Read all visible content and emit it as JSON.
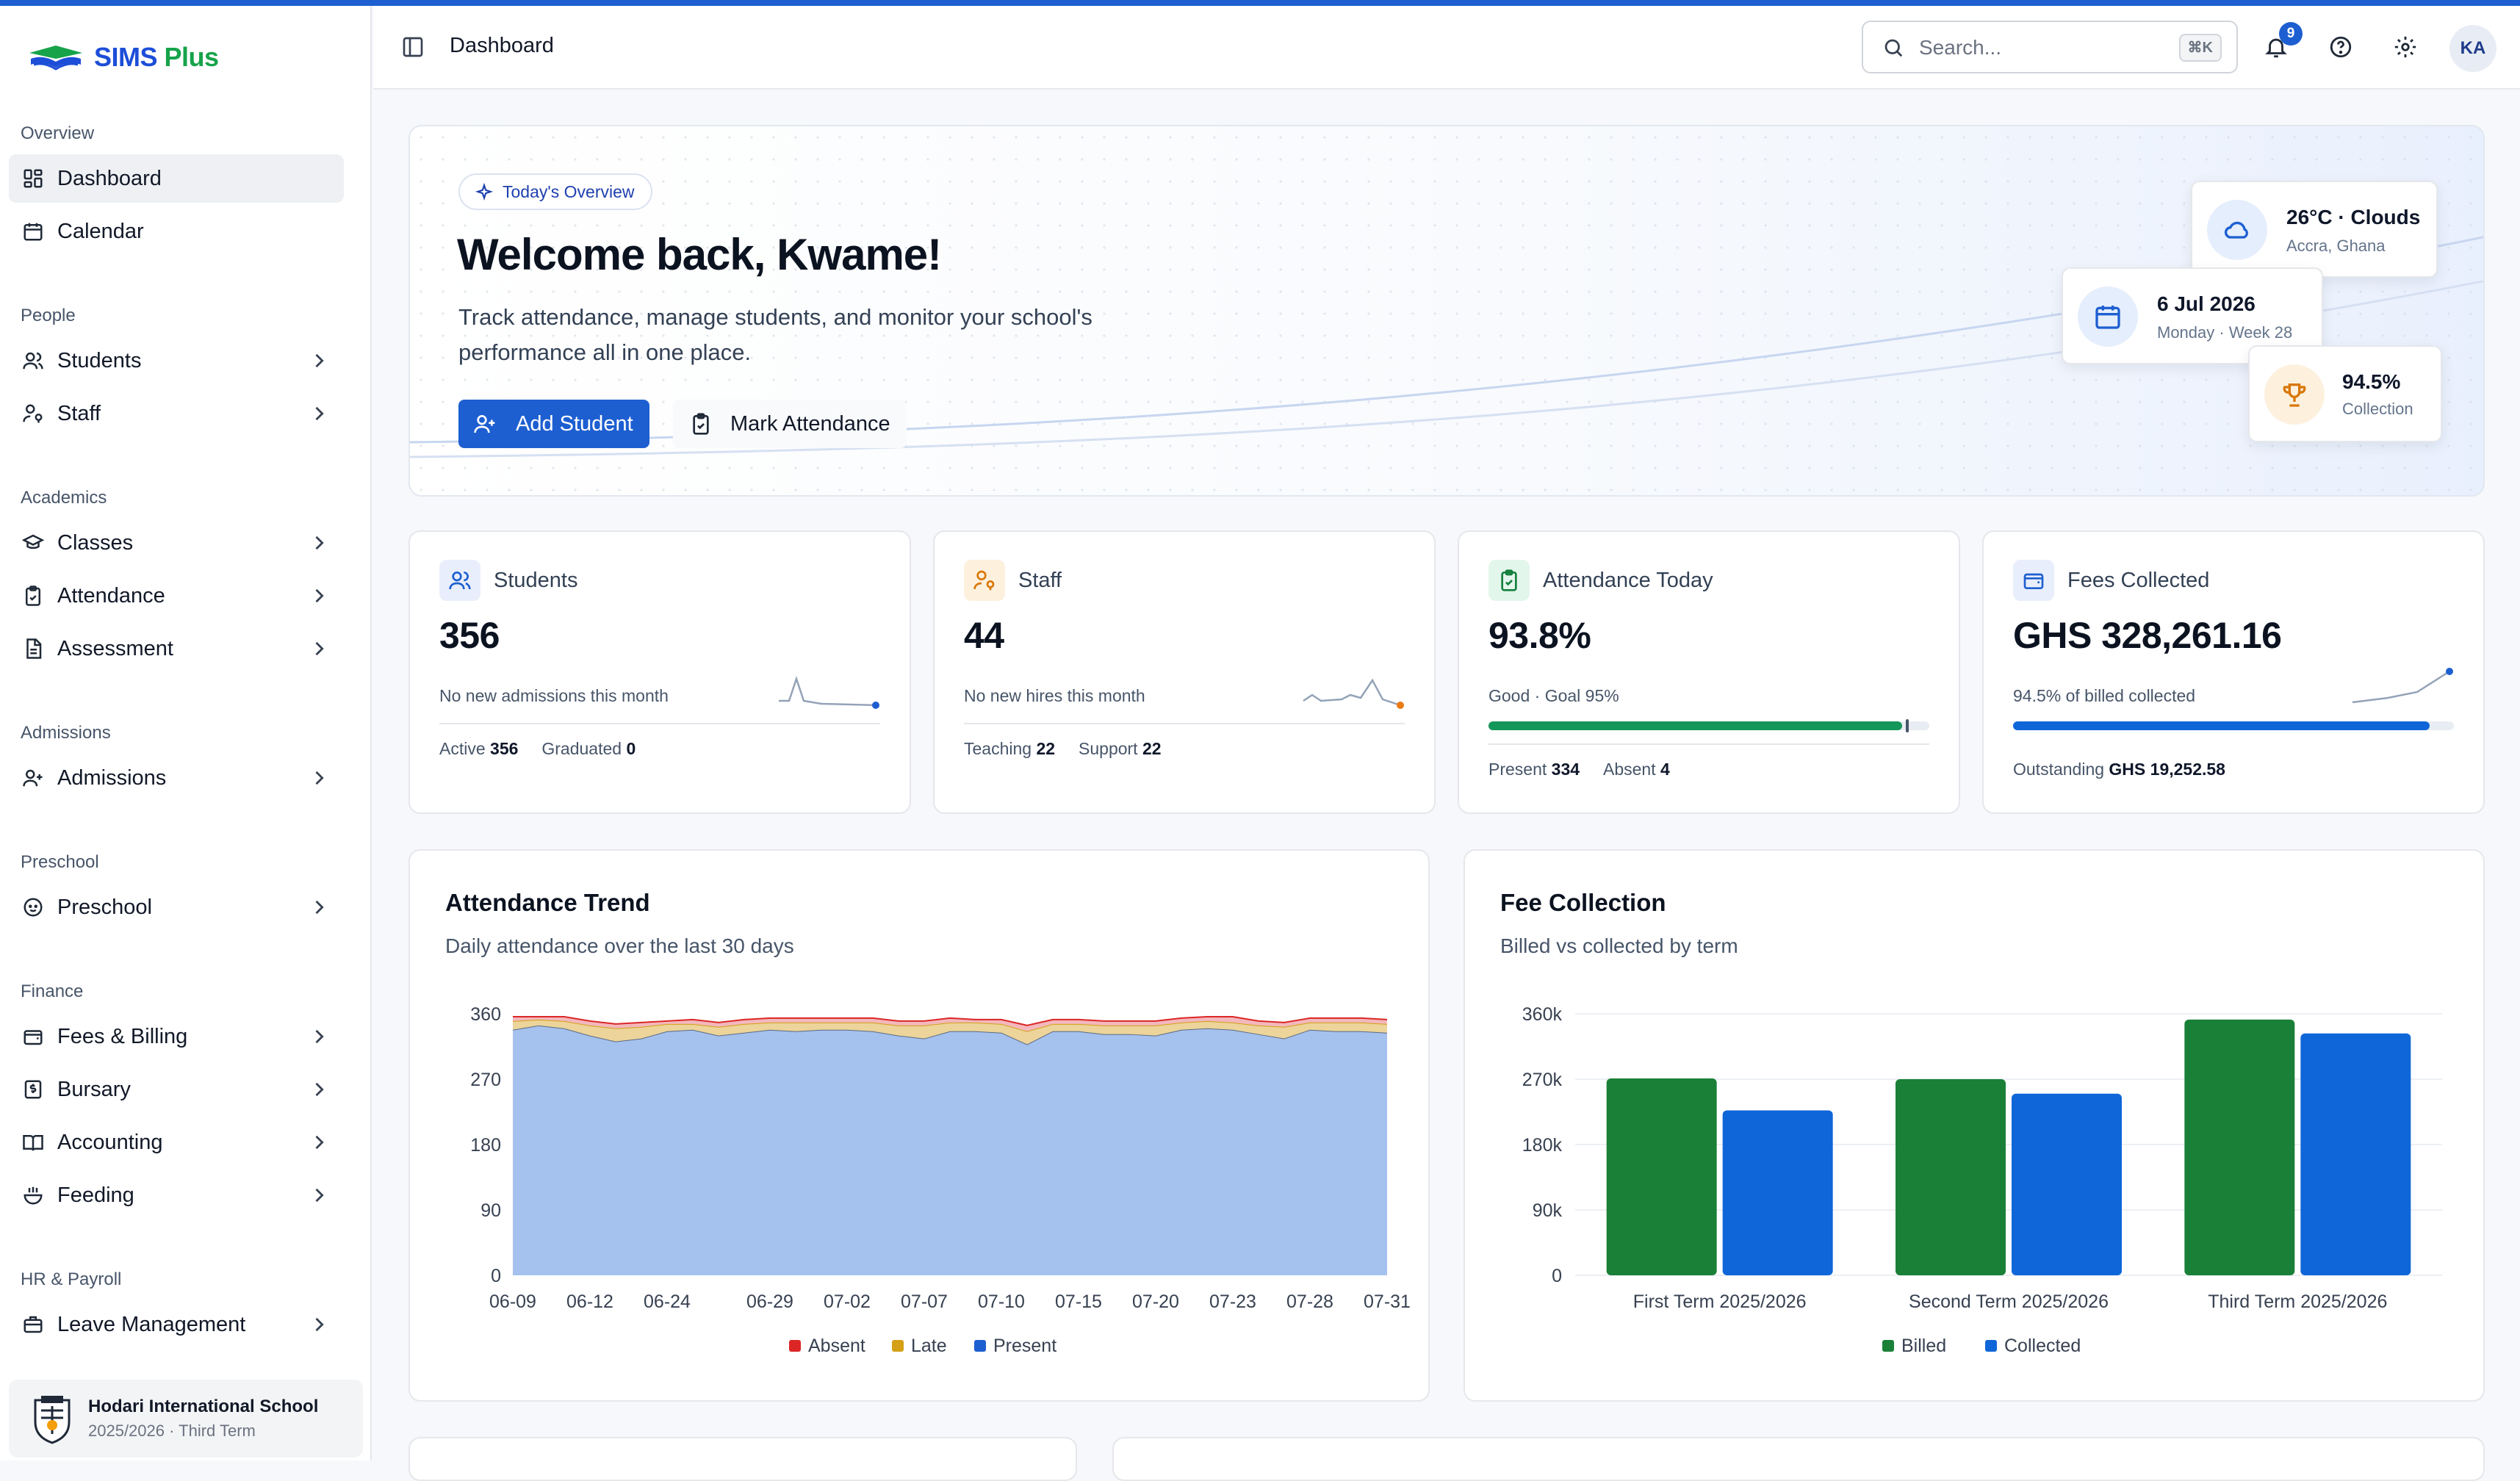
{
  "brand": {
    "name_a": "SIMS ",
    "name_b": "Plus"
  },
  "sidebar": {
    "groups": [
      {
        "heading": "Overview",
        "items": [
          {
            "label": "Dashboard"
          },
          {
            "label": "Calendar"
          }
        ]
      },
      {
        "heading": "People",
        "items": [
          {
            "label": "Students"
          },
          {
            "label": "Staff"
          }
        ]
      },
      {
        "heading": "Academics",
        "items": [
          {
            "label": "Classes"
          },
          {
            "label": "Attendance"
          },
          {
            "label": "Assessment"
          }
        ]
      },
      {
        "heading": "Admissions",
        "items": [
          {
            "label": "Admissions"
          }
        ]
      },
      {
        "heading": "Preschool",
        "items": [
          {
            "label": "Preschool"
          }
        ]
      },
      {
        "heading": "Finance",
        "items": [
          {
            "label": "Fees & Billing"
          },
          {
            "label": "Bursary"
          },
          {
            "label": "Accounting"
          },
          {
            "label": "Feeding"
          }
        ]
      },
      {
        "heading": "HR & Payroll",
        "items": [
          {
            "label": "Leave Management"
          }
        ]
      }
    ],
    "school": {
      "name": "Hodari International School",
      "term": "2025/2026 · Third Term"
    }
  },
  "header": {
    "title": "Dashboard",
    "search_placeholder": "Search...",
    "search_shortcut": "⌘K",
    "notification_count": "9",
    "avatar_initials": "KA"
  },
  "hero": {
    "pill": "Today's Overview",
    "title": "Welcome back, Kwame!",
    "subtitle": "Track attendance, manage students, and monitor your school's performance all in one place.",
    "add_student": "Add Student",
    "mark_attendance": "Mark Attendance",
    "weather": {
      "title": "26°C · Clouds",
      "sub": "Accra, Ghana"
    },
    "date": {
      "title": "6 Jul 2026",
      "sub": "Monday · Week 28"
    },
    "collection": {
      "title": "94.5%",
      "sub": "Collection"
    }
  },
  "stats": {
    "students": {
      "label": "Students",
      "value": "356",
      "note": "No new admissions this month",
      "f1_label": "Active",
      "f1_value": "356",
      "f2_label": "Graduated",
      "f2_value": "0"
    },
    "staff": {
      "label": "Staff",
      "value": "44",
      "note": "No new hires this month",
      "f1_label": "Teaching",
      "f1_value": "22",
      "f2_label": "Support",
      "f2_value": "22"
    },
    "attendance": {
      "label": "Attendance Today",
      "value": "93.8%",
      "note": "Good · Goal 95%",
      "progress": 0.938,
      "goal": 0.95,
      "f1_label": "Present",
      "f1_value": "334",
      "f2_label": "Absent",
      "f2_value": "4"
    },
    "fees": {
      "label": "Fees Collected",
      "value": "GHS 328,261.16",
      "note": "94.5% of billed collected",
      "progress": 0.945,
      "f1_label": "Outstanding",
      "f1_value": "GHS 19,252.58"
    }
  },
  "attendance_chart": {
    "title": "Attendance Trend",
    "subtitle": "Daily attendance over the last 30 days"
  },
  "fee_chart": {
    "title": "Fee Collection",
    "subtitle": "Billed vs collected by term"
  },
  "chart_data": [
    {
      "type": "area",
      "stacked": true,
      "x": [
        "06-09",
        "06-10",
        "06-11",
        "06-12",
        "06-13",
        "06-16",
        "06-24",
        "06-25",
        "06-26",
        "06-27",
        "06-29",
        "06-30",
        "07-01",
        "07-02",
        "07-03",
        "07-06",
        "07-07",
        "07-08",
        "07-09",
        "07-10",
        "07-13",
        "07-14",
        "07-15",
        "07-16",
        "07-17",
        "07-20",
        "07-21",
        "07-22",
        "07-23",
        "07-24",
        "07-27",
        "07-28",
        "07-29",
        "07-30",
        "07-31"
      ],
      "tick_labels": [
        "06-09",
        "06-12",
        "06-24",
        "06-29",
        "07-02",
        "07-07",
        "07-10",
        "07-15",
        "07-20",
        "07-23",
        "07-28",
        "07-31"
      ],
      "yticks": [
        0,
        90,
        180,
        270,
        360
      ],
      "ylim": [
        0,
        360
      ],
      "series": [
        {
          "name": "Present",
          "color": "#1d5fd1",
          "values": [
            338,
            344,
            340,
            330,
            322,
            326,
            336,
            338,
            330,
            334,
            338,
            336,
            338,
            338,
            336,
            330,
            326,
            336,
            336,
            334,
            318,
            336,
            336,
            332,
            332,
            330,
            338,
            340,
            338,
            332,
            326,
            338,
            336,
            336,
            334
          ]
        },
        {
          "name": "Late",
          "color": "#d4a017",
          "values": [
            12,
            8,
            10,
            14,
            18,
            16,
            10,
            8,
            12,
            12,
            10,
            12,
            10,
            10,
            12,
            14,
            18,
            12,
            12,
            12,
            18,
            10,
            10,
            12,
            12,
            14,
            10,
            10,
            10,
            12,
            16,
            10,
            12,
            12,
            12
          ]
        },
        {
          "name": "Absent",
          "color": "#dc2626",
          "values": [
            6,
            4,
            6,
            6,
            6,
            6,
            4,
            6,
            6,
            6,
            6,
            6,
            6,
            6,
            6,
            6,
            6,
            6,
            4,
            6,
            8,
            6,
            6,
            6,
            6,
            6,
            6,
            6,
            8,
            6,
            6,
            6,
            6,
            6,
            6
          ]
        }
      ],
      "legend": [
        "Absent",
        "Late",
        "Present"
      ],
      "legend_position": "bottom"
    },
    {
      "type": "bar",
      "categories": [
        "First Term 2025/2026",
        "Second Term 2025/2026",
        "Third Term 2025/2026"
      ],
      "series": [
        {
          "name": "Billed",
          "color": "#1a8038",
          "values": [
            271000,
            270000,
            352000
          ]
        },
        {
          "name": "Collected",
          "color": "#0f66d8",
          "values": [
            227000,
            250000,
            333000
          ]
        }
      ],
      "yticks": [
        "0",
        "90k",
        "180k",
        "270k",
        "360k"
      ],
      "ylim": [
        0,
        360000
      ],
      "legend_position": "bottom"
    }
  ]
}
